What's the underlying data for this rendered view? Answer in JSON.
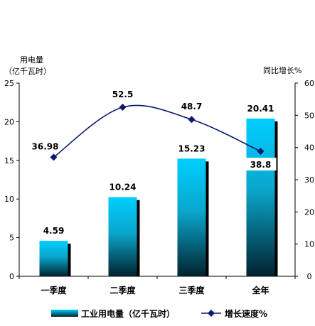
{
  "chart_data": {
    "type": "bar+line",
    "categories": [
      "一季度",
      "二季度",
      "三季度",
      "全年"
    ],
    "series": [
      {
        "name": "工业用电量（亿千瓦时）",
        "type": "bar",
        "axis": "left",
        "values": [
          4.59,
          10.24,
          15.23,
          20.41
        ],
        "labels": [
          "4.59",
          "10.24",
          "15.23",
          "20.41"
        ]
      },
      {
        "name": "增长速度%",
        "type": "line",
        "axis": "right",
        "values": [
          36.98,
          52.5,
          48.7,
          38.8
        ],
        "labels": [
          "36.98",
          "52.5",
          "48.7",
          "38.8"
        ]
      }
    ],
    "y_left": {
      "label_line1": "用电量",
      "label_line2": "（亿千瓦时）",
      "ylim": [
        0,
        25
      ],
      "ticks": [
        "0",
        "5",
        "10",
        "15",
        "20",
        "25"
      ]
    },
    "y_right": {
      "label": "同比增长%",
      "ylim": [
        0,
        60
      ],
      "ticks": [
        "0",
        "10",
        "20",
        "30",
        "40",
        "50",
        "60"
      ]
    },
    "legend_position": "bottom",
    "grid": false,
    "colors": {
      "bar_top": "#00cfff",
      "bar_bottom": "#002a38",
      "bar_shadow": "#000000",
      "line": "#0a1a6e",
      "marker": "#0a1a6e"
    }
  }
}
